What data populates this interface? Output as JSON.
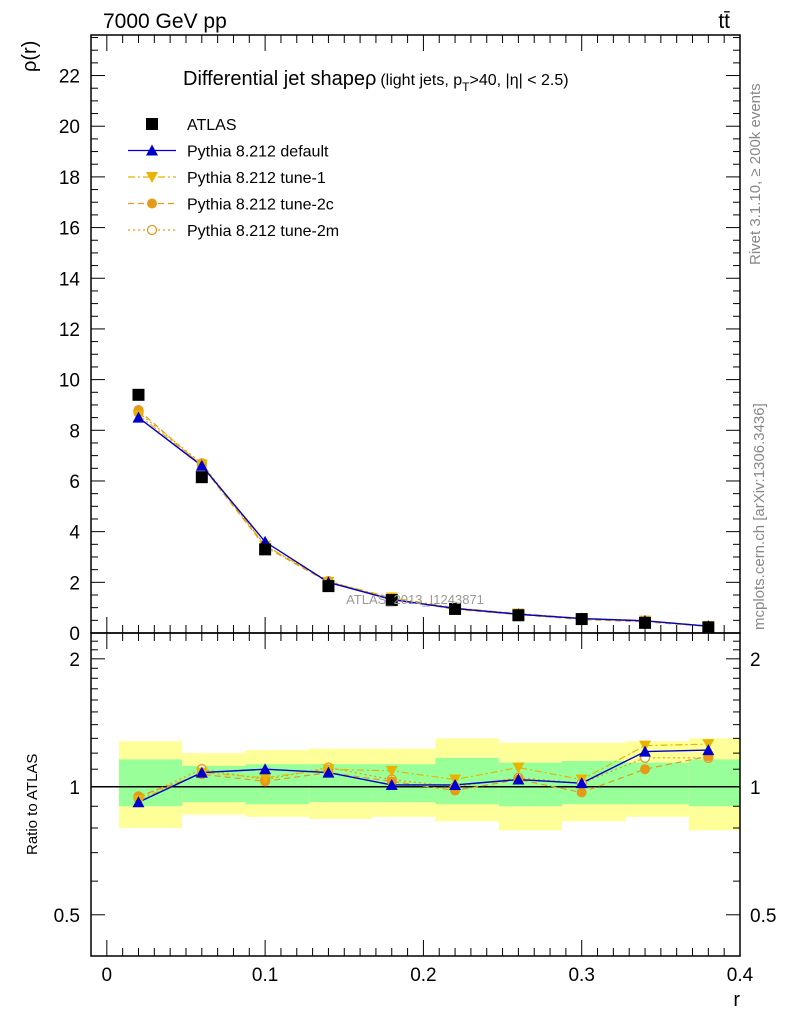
{
  "header": {
    "energy_label": "7000 GeV pp",
    "process_label": "tt̄"
  },
  "side_labels": {
    "rivet": "Rivet 3.1.10, ≥ 200k events",
    "mcplots": "mcplots.cern.ch [arXiv:1306.3436]"
  },
  "chart_data": [
    {
      "type": "line",
      "title": "Differential jet shapeρ (light jets, p_T>40, |η| < 2.5)",
      "title_main": "Differential jet shapeρ",
      "title_sub_a": "(light jets, p",
      "title_sub_sub": "T",
      "title_sub_b": ">40, |η| < 2.5)",
      "ylabel": "ρ(r)",
      "xlabel": "r",
      "watermark": "ATLAS_2013_I1243871",
      "xlim": [
        -0.01,
        0.4
      ],
      "ylim": [
        0,
        23.6
      ],
      "yticks": [
        0,
        2,
        4,
        6,
        8,
        10,
        12,
        14,
        16,
        18,
        20,
        22
      ],
      "yticklabels": [
        "0",
        "2",
        "4",
        "6",
        "8",
        "10",
        "12",
        "14",
        "16",
        "18",
        "20",
        "22"
      ],
      "legend_position": "top-left",
      "x": [
        0.02,
        0.06,
        0.1,
        0.14,
        0.18,
        0.22,
        0.26,
        0.3,
        0.34,
        0.38
      ],
      "series": [
        {
          "name": "ATLAS",
          "color": "#000000",
          "marker": "square",
          "style": "points",
          "values": [
            9.4,
            6.15,
            3.3,
            1.85,
            1.3,
            0.95,
            0.7,
            0.55,
            0.4,
            0.22
          ]
        },
        {
          "name": "Pythia 8.212 default",
          "color": "#0000cc",
          "marker": "triangle-up",
          "style": "solid",
          "values": [
            8.5,
            6.6,
            3.6,
            2.0,
            1.32,
            0.97,
            0.74,
            0.57,
            0.48,
            0.27
          ]
        },
        {
          "name": "Pythia 8.212 tune-1",
          "color": "#e8b400",
          "marker": "triangle-down",
          "style": "dashdot",
          "values": [
            8.6,
            6.65,
            3.45,
            2.02,
            1.4,
            0.99,
            0.77,
            0.58,
            0.49,
            0.28
          ]
        },
        {
          "name": "Pythia 8.212 tune-2c",
          "color": "#e69a1a",
          "marker": "circle",
          "style": "dashed",
          "values": [
            8.8,
            6.6,
            3.4,
            2.0,
            1.35,
            0.93,
            0.73,
            0.53,
            0.44,
            0.26
          ]
        },
        {
          "name": "Pythia 8.212 tune-2m",
          "color": "#e69a1a",
          "marker": "circle-open",
          "style": "dotted",
          "values": [
            8.7,
            6.7,
            3.45,
            2.05,
            1.35,
            0.95,
            0.74,
            0.56,
            0.47,
            0.26
          ]
        }
      ]
    },
    {
      "type": "line",
      "ylabel": "Ratio to ATLAS",
      "xlabel": "r",
      "scale": "log",
      "ylim": [
        0.4,
        2.3
      ],
      "yticks": [
        0.5,
        1,
        2
      ],
      "yticklabels": [
        "0.5",
        "1",
        "2"
      ],
      "xticks": [
        0,
        0.1,
        0.2,
        0.3,
        0.4
      ],
      "xticklabels": [
        "0",
        "0.1",
        "0.2",
        "0.3",
        "0.4"
      ],
      "reference_line": 1,
      "x": [
        0.02,
        0.06,
        0.1,
        0.14,
        0.18,
        0.22,
        0.26,
        0.3,
        0.34,
        0.38
      ],
      "bin_edges": [
        0.0,
        0.04,
        0.08,
        0.12,
        0.16,
        0.2,
        0.24,
        0.28,
        0.32,
        0.36,
        0.4
      ],
      "bands": {
        "total": {
          "color": "#ffff99",
          "lo": [
            0.8,
            0.86,
            0.85,
            0.84,
            0.85,
            0.83,
            0.79,
            0.83,
            0.85,
            0.79
          ],
          "hi": [
            1.28,
            1.2,
            1.22,
            1.23,
            1.23,
            1.3,
            1.27,
            1.27,
            1.28,
            1.3
          ]
        },
        "stat": {
          "color": "#99ff99",
          "lo": [
            0.9,
            0.92,
            0.91,
            0.92,
            0.92,
            0.91,
            0.9,
            0.91,
            0.91,
            0.9
          ],
          "hi": [
            1.16,
            1.12,
            1.13,
            1.13,
            1.13,
            1.17,
            1.14,
            1.15,
            1.14,
            1.16
          ]
        }
      },
      "series": [
        {
          "name": "Pythia 8.212 default",
          "color": "#0000cc",
          "marker": "triangle-up",
          "style": "solid",
          "values": [
            0.92,
            1.08,
            1.1,
            1.08,
            1.01,
            1.01,
            1.04,
            1.02,
            1.21,
            1.22
          ]
        },
        {
          "name": "Pythia 8.212 tune-1",
          "color": "#e8b400",
          "marker": "triangle-down",
          "style": "dashdot",
          "values": [
            0.93,
            1.08,
            1.05,
            1.1,
            1.09,
            1.04,
            1.11,
            1.04,
            1.25,
            1.26
          ]
        },
        {
          "name": "Pythia 8.212 tune-2c",
          "color": "#e69a1a",
          "marker": "circle",
          "style": "dashed",
          "values": [
            0.95,
            1.07,
            1.03,
            1.08,
            1.03,
            0.98,
            1.04,
            0.97,
            1.1,
            1.18
          ]
        },
        {
          "name": "Pythia 8.212 tune-2m",
          "color": "#e69a1a",
          "marker": "circle-open",
          "style": "dotted",
          "values": [
            0.94,
            1.1,
            1.04,
            1.11,
            1.04,
            1.0,
            1.05,
            1.02,
            1.17,
            1.17
          ]
        }
      ]
    }
  ]
}
